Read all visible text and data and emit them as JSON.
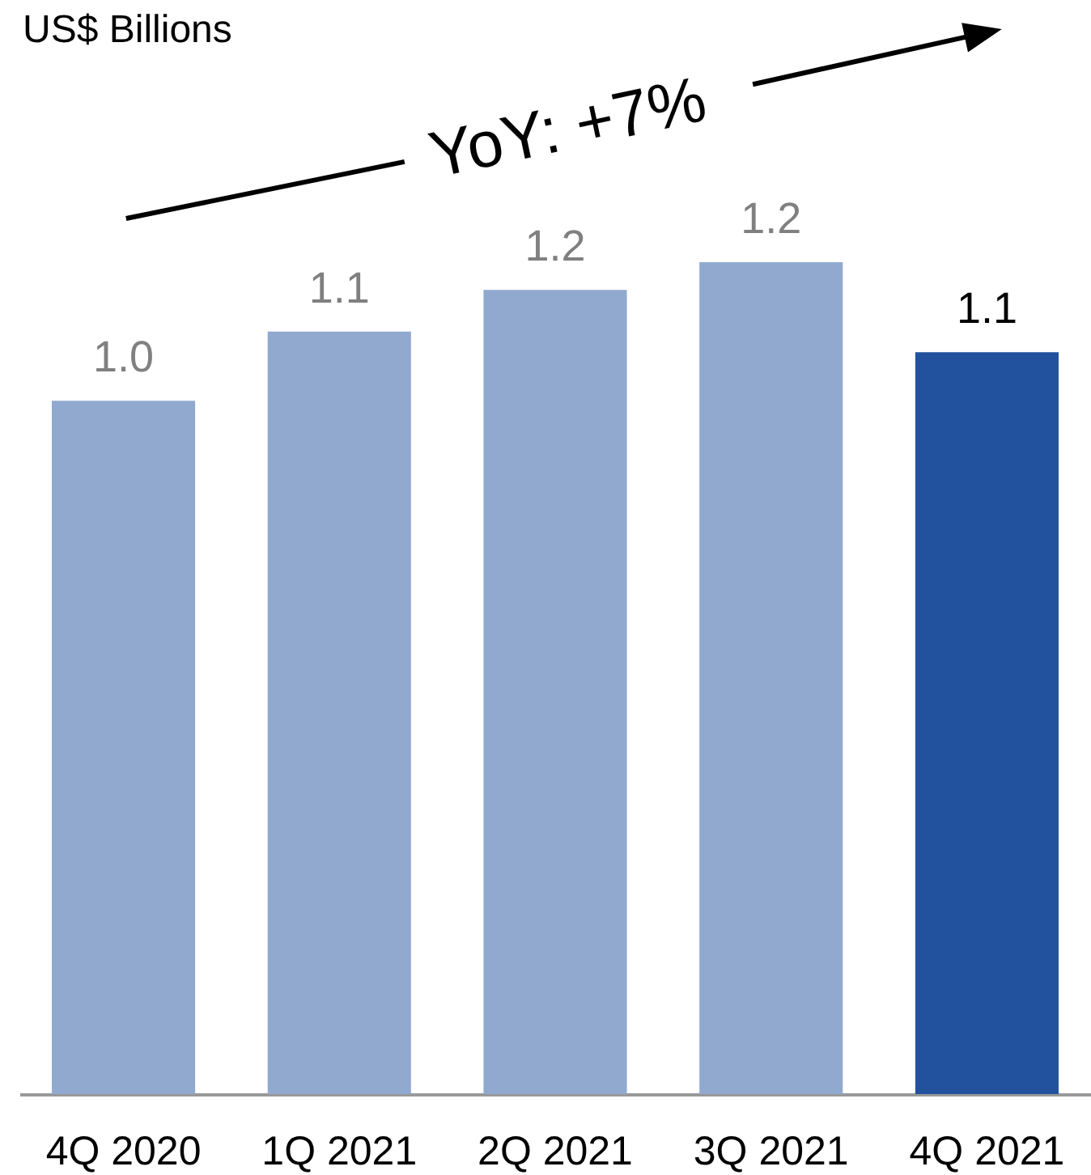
{
  "chart_data": {
    "type": "bar",
    "title": "US$ Billions",
    "categories": [
      "4Q 2020",
      "1Q 2021",
      "2Q 2021",
      "3Q 2021",
      "4Q 2021"
    ],
    "values": [
      1.0,
      1.1,
      1.16,
      1.2,
      1.07
    ],
    "value_labels": [
      "1.0",
      "1.1",
      "1.2",
      "1.2",
      "1.1"
    ],
    "colors": [
      "#91a9cf",
      "#91a9cf",
      "#91a9cf",
      "#91a9cf",
      "#22529e"
    ],
    "annotations": [
      "YoY: +7%"
    ]
  }
}
